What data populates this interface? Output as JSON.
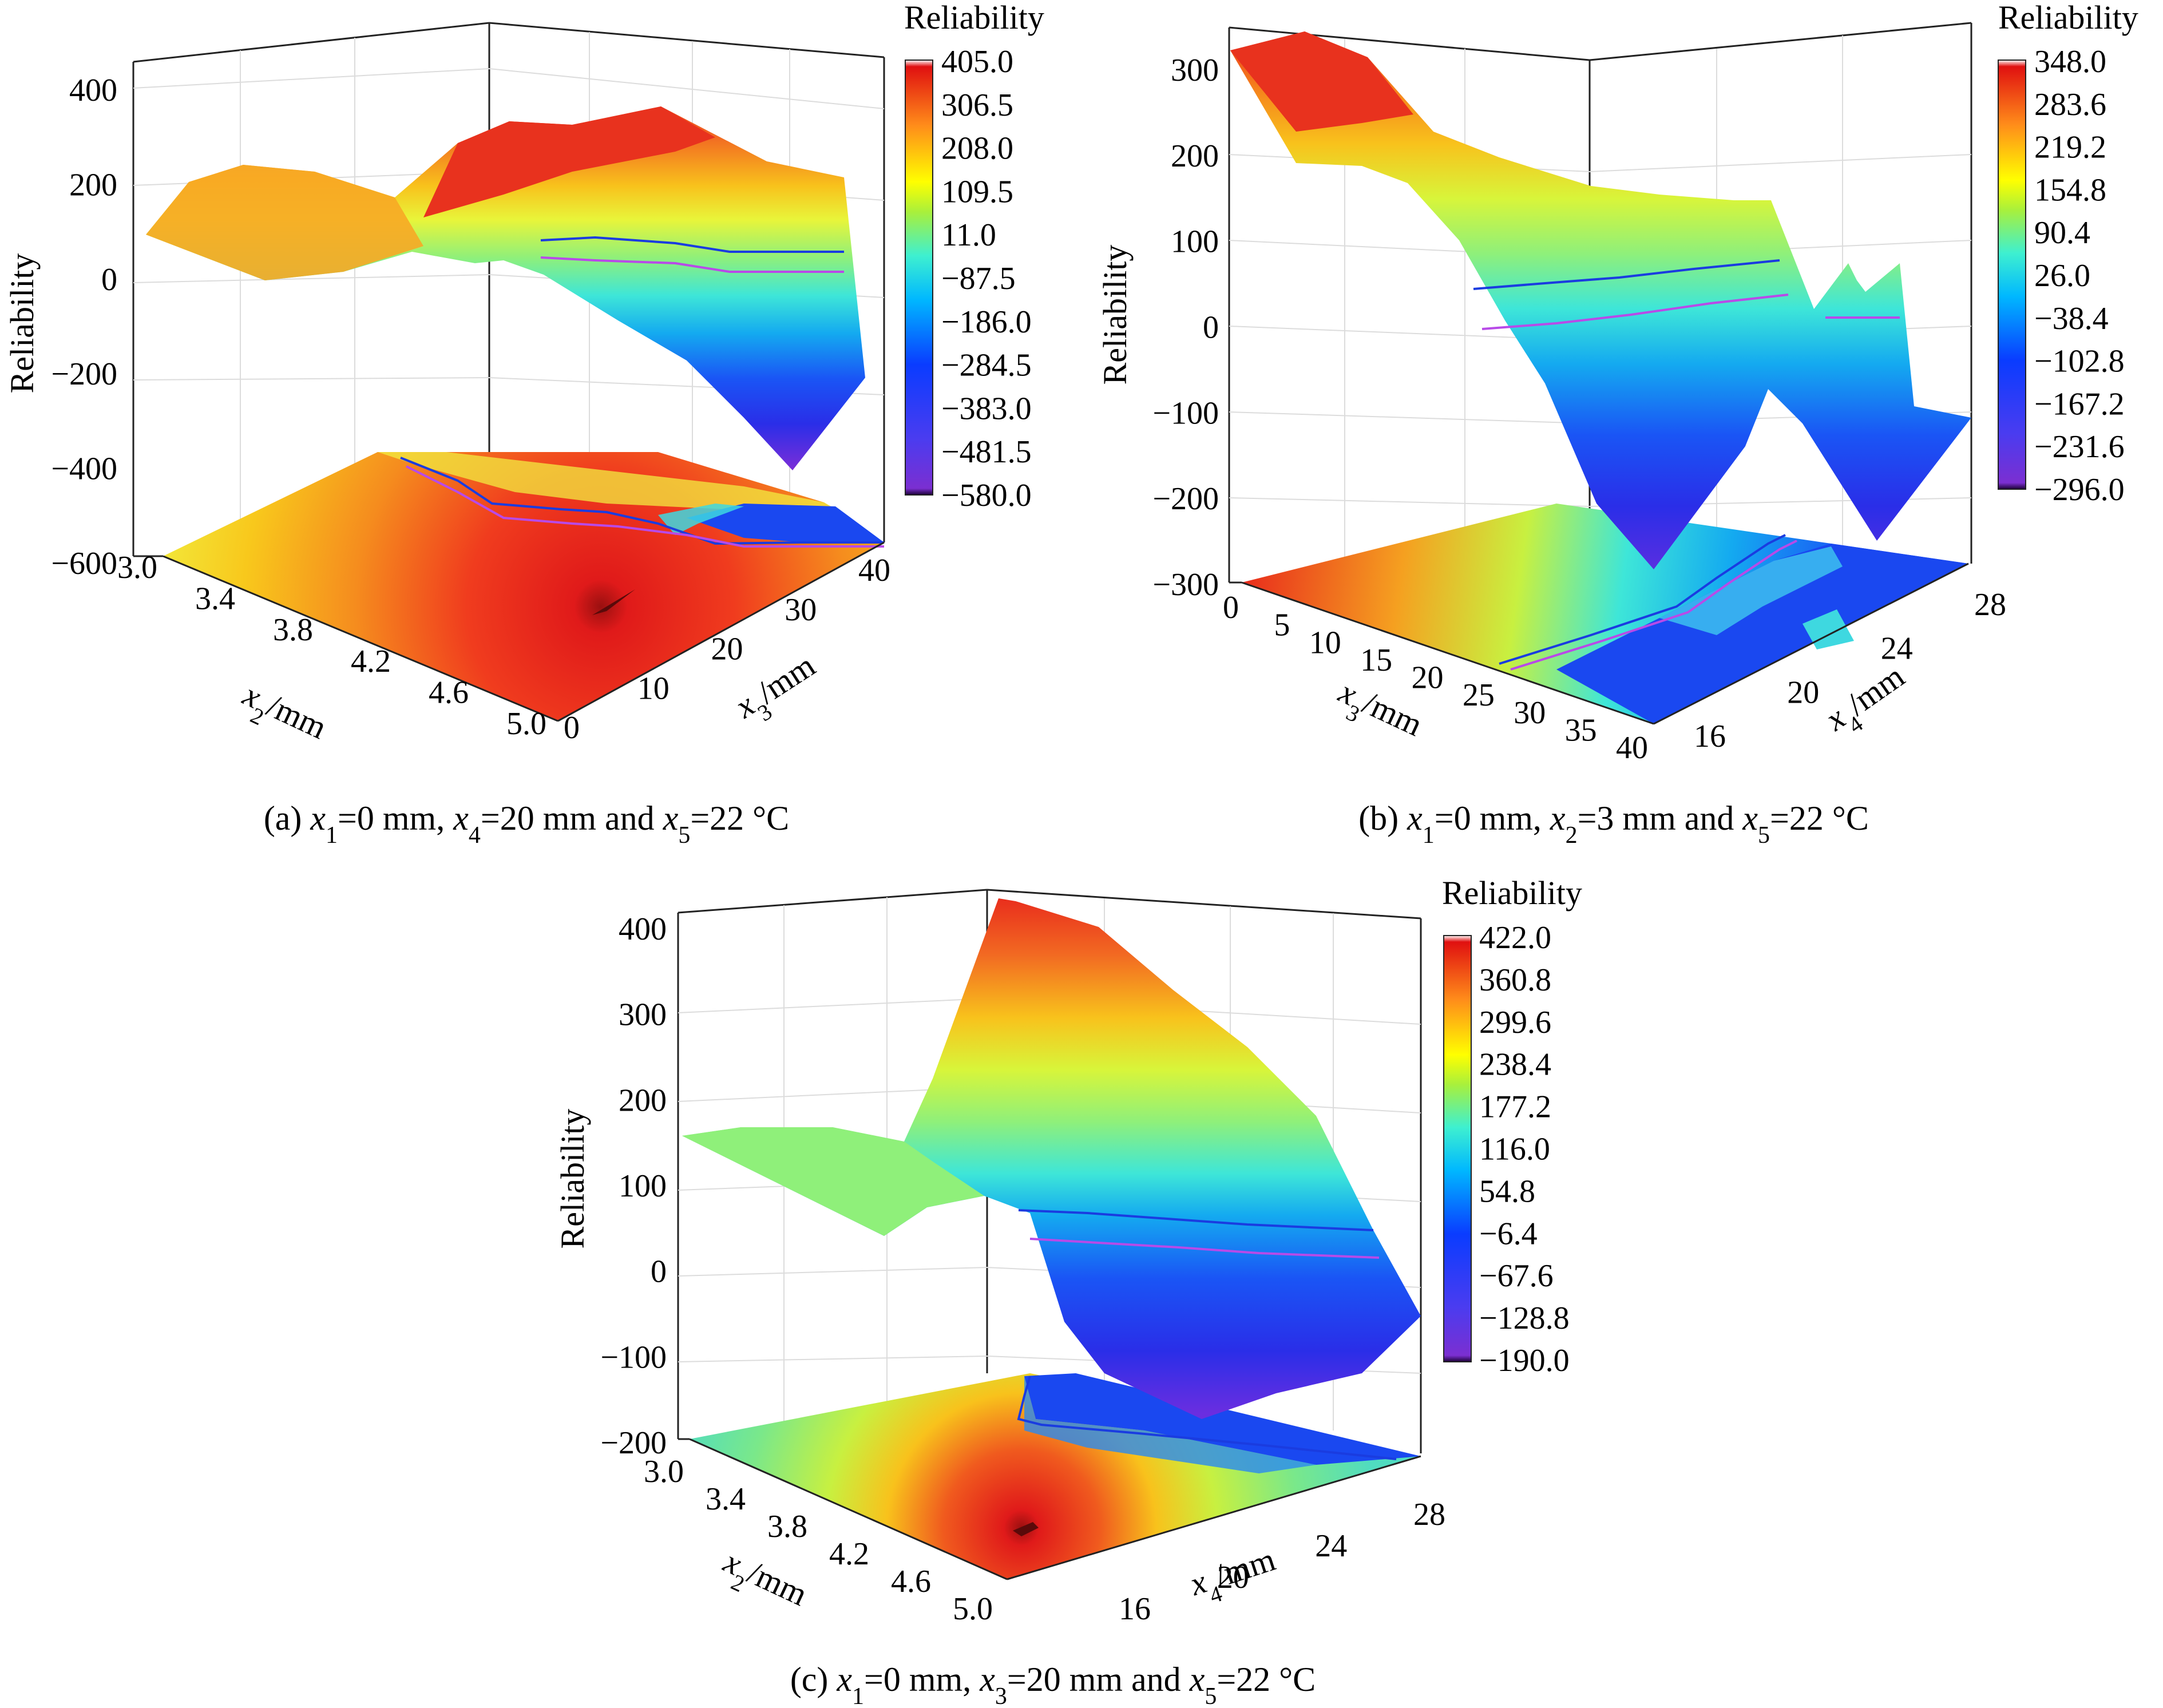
{
  "chart_data": [
    {
      "id": "a",
      "type": "surface3d",
      "caption": [
        "(a) ",
        "x",
        "1",
        "=0 mm, ",
        "x",
        "4",
        "=20 mm and ",
        "x",
        "5",
        "=22 °C"
      ],
      "zlabel": "Reliability",
      "xlabel": [
        "x",
        "2",
        "/mm"
      ],
      "ylabel": [
        "x",
        "3",
        "/mm"
      ],
      "zticks": [
        "400",
        "200",
        "0",
        "−200",
        "−400",
        "−600"
      ],
      "xticks": [
        "3.0",
        "3.4",
        "3.8",
        "4.2",
        "4.6",
        "5.0"
      ],
      "yticks": [
        "0",
        "10",
        "20",
        "30",
        "40"
      ],
      "zlim": [
        -600,
        450
      ],
      "colorbar": {
        "title": "Reliability",
        "ticks": [
          "405.0",
          "306.5",
          "208.0",
          "109.5",
          "11.0",
          "−87.5",
          "−186.0",
          "−284.5",
          "−383.0",
          "−481.5",
          "−580.0"
        ]
      }
    },
    {
      "id": "b",
      "type": "surface3d",
      "caption": [
        "(b) ",
        "x",
        "1",
        "=0 mm, ",
        "x",
        "2",
        "=3 mm and ",
        "x",
        "5",
        "=22 °C"
      ],
      "zlabel": "Reliability",
      "xlabel": [
        "x",
        "3",
        "/mm"
      ],
      "ylabel": [
        "x",
        "4",
        "/mm"
      ],
      "zticks": [
        "300",
        "200",
        "100",
        "0",
        "−100",
        "−200",
        "−300"
      ],
      "xticks": [
        "0",
        "5",
        "10",
        "15",
        "20",
        "25",
        "30",
        "35",
        "40"
      ],
      "yticks": [
        "16",
        "20",
        "24",
        "28"
      ],
      "zlim": [
        -300,
        330
      ],
      "colorbar": {
        "title": "Reliability",
        "ticks": [
          "348.0",
          "283.6",
          "219.2",
          "154.8",
          "90.4",
          "26.0",
          "−38.4",
          "−102.8",
          "−167.2",
          "−231.6",
          "−296.0"
        ]
      }
    },
    {
      "id": "c",
      "type": "surface3d",
      "caption": [
        "(c) ",
        "x",
        "1",
        "=0 mm, ",
        "x",
        "3",
        "=20 mm and ",
        "x",
        "5",
        "=22 °C"
      ],
      "zlabel": "Reliability",
      "xlabel": [
        "x",
        "2",
        "/mm"
      ],
      "ylabel": [
        "x",
        "4",
        "/mm"
      ],
      "zticks": [
        "400",
        "300",
        "200",
        "100",
        "0",
        "−100",
        "−200"
      ],
      "xticks": [
        "3.0",
        "3.4",
        "3.8",
        "4.2",
        "4.6",
        "5.0"
      ],
      "yticks": [
        "16",
        "20",
        "24",
        "28"
      ],
      "zlim": [
        -200,
        440
      ],
      "colorbar": {
        "title": "Reliability",
        "ticks": [
          "422.0",
          "360.8",
          "299.6",
          "238.4",
          "177.2",
          "116.0",
          "54.8",
          "−6.4",
          "−67.6",
          "−128.8",
          "−190.0"
        ]
      }
    }
  ]
}
